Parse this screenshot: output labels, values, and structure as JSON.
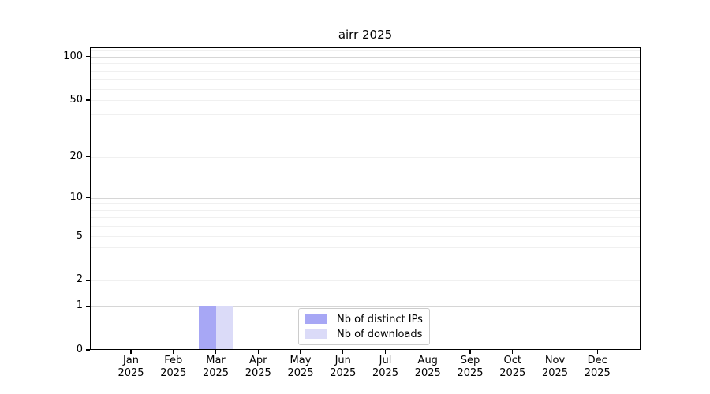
{
  "chart_data": {
    "type": "bar",
    "title": "airr 2025",
    "categories": [
      "Jan 2025",
      "Feb 2025",
      "Mar 2025",
      "Apr 2025",
      "May 2025",
      "Jun 2025",
      "Jul 2025",
      "Aug 2025",
      "Sep 2025",
      "Oct 2025",
      "Nov 2025",
      "Dec 2025"
    ],
    "series": [
      {
        "name": "Nb of distinct IPs",
        "color": "#a7a7f5",
        "values": [
          0,
          0,
          1,
          0,
          0,
          0,
          0,
          0,
          0,
          0,
          0,
          0
        ]
      },
      {
        "name": "Nb of downloads",
        "color": "#dbdbf8",
        "values": [
          0,
          0,
          1,
          0,
          0,
          0,
          0,
          0,
          0,
          0,
          0,
          0
        ]
      }
    ],
    "xlabel": "",
    "ylabel": "",
    "yaxis": {
      "scale": "log1p",
      "ticks": [
        0,
        1,
        2,
        5,
        10,
        20,
        50,
        100
      ],
      "ylim": [
        0,
        116
      ],
      "major_gridlines": [
        1,
        10,
        100
      ],
      "minor_gridlines": [
        2,
        3,
        4,
        5,
        6,
        7,
        8,
        9,
        20,
        30,
        40,
        50,
        60,
        70,
        80,
        90,
        110
      ]
    },
    "grid": "on",
    "legend_position": "lower center"
  },
  "colors": {
    "minor_grid": "#f0f0f0",
    "major_grid": "#d6d6d6",
    "spine": "#000000",
    "text": "#000000",
    "legend_border": "#cccccc",
    "background": "#ffffff"
  }
}
